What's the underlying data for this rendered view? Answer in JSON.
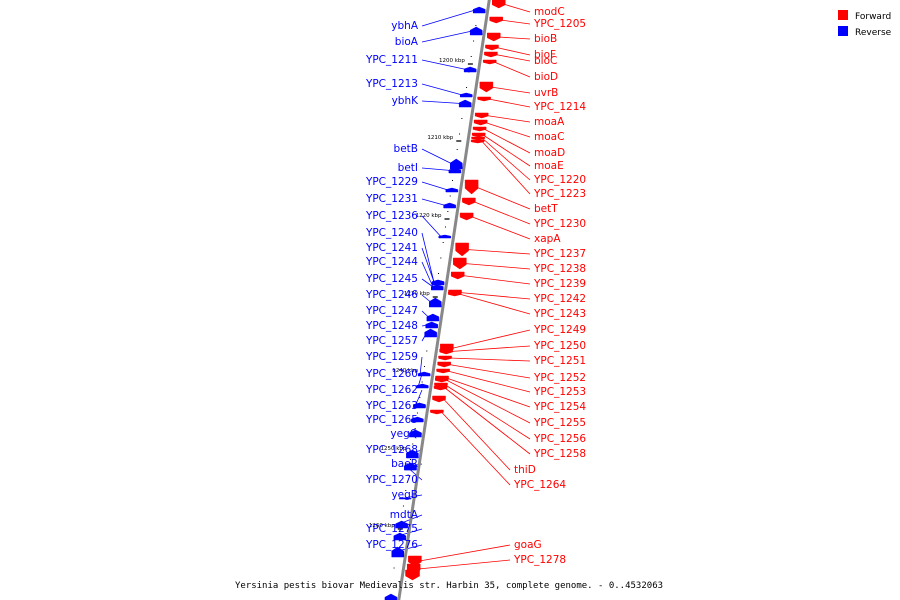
{
  "colors": {
    "forward": "#ff0000",
    "reverse": "#0000ff",
    "axis": "#888888"
  },
  "legend": {
    "forward_label": "Forward",
    "reverse_label": "Reverse"
  },
  "caption": "Yersinia pestis biovar Medievalis str. Harbin 35, complete genome. - 0..4532063",
  "ruler": [
    "1200 kbp",
    "1210 kbp",
    "1220 kbp",
    "1230 kbp",
    "1240 kbp",
    "1250 kbp",
    "1260 kbp"
  ],
  "reverse_genes": [
    "ybhA",
    "bioA",
    "YPC_1211",
    "YPC_1213",
    "ybhK",
    "betB",
    "betI",
    "YPC_1229",
    "YPC_1231",
    "YPC_1236",
    "YPC_1240",
    "YPC_1241",
    "YPC_1244",
    "YPC_1245",
    "YPC_1246",
    "YPC_1247",
    "YPC_1248",
    "YPC_1257",
    "YPC_1259",
    "YPC_1260",
    "YPC_1262",
    "YPC_1263",
    "YPC_1265",
    "yegQ",
    "YPC_1268",
    "baeR",
    "YPC_1270",
    "yegB",
    "mdtA",
    "YPC_1275",
    "YPC_1276"
  ],
  "forward_genes": [
    "modC",
    "YPC_1205",
    "bioB",
    "bioF",
    "bioC",
    "bioD",
    "uvrB",
    "YPC_1214",
    "moaA",
    "moaC",
    "moaD",
    "moaE",
    "YPC_1220",
    "YPC_1223",
    "betT",
    "YPC_1230",
    "xapA",
    "YPC_1237",
    "YPC_1238",
    "YPC_1239",
    "YPC_1242",
    "YPC_1243",
    "YPC_1249",
    "YPC_1250",
    "YPC_1251",
    "YPC_1252",
    "YPC_1253",
    "YPC_1254",
    "YPC_1255",
    "YPC_1256",
    "YPC_1258",
    "thiD",
    "YPC_1264",
    "goaG",
    "YPC_1278"
  ]
}
